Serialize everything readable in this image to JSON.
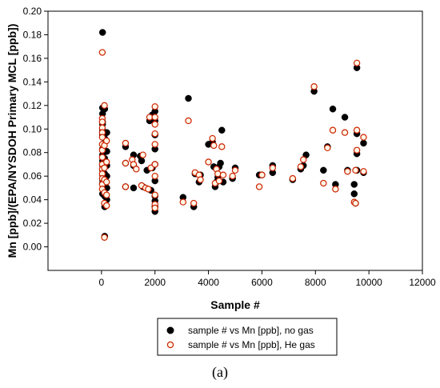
{
  "chart_data": {
    "type": "scatter",
    "xlabel": "Sample #",
    "ylabel": "Mn [ppb]/(EPA/NYSDOH Primary MCL [ppb])",
    "xlim": [
      -2000,
      12000
    ],
    "ylim": [
      -0.02,
      0.2
    ],
    "xticks": [
      "0",
      "2000",
      "4000",
      "6000",
      "8000",
      "10000",
      "12000"
    ],
    "yticks": [
      "0.00",
      "0.02",
      "0.04",
      "0.06",
      "0.08",
      "0.10",
      "0.12",
      "0.14",
      "0.16",
      "0.18",
      "0.20"
    ],
    "legend_position": "bottom-center",
    "caption": "(a)",
    "series": [
      {
        "name": "sample # vs Mn [ppb], no gas",
        "marker": "filled-circle",
        "color": "#000000",
        "points": [
          [
            40,
            0.182
          ],
          [
            40,
            0.118
          ],
          [
            40,
            0.113
          ],
          [
            40,
            0.106
          ],
          [
            40,
            0.104
          ],
          [
            40,
            0.099
          ],
          [
            40,
            0.095
          ],
          [
            40,
            0.087
          ],
          [
            40,
            0.083
          ],
          [
            40,
            0.078
          ],
          [
            40,
            0.073
          ],
          [
            40,
            0.069
          ],
          [
            40,
            0.065
          ],
          [
            40,
            0.061
          ],
          [
            40,
            0.057
          ],
          [
            40,
            0.054
          ],
          [
            40,
            0.049
          ],
          [
            40,
            0.045
          ],
          [
            120,
            0.117
          ],
          [
            120,
            0.092
          ],
          [
            120,
            0.075
          ],
          [
            120,
            0.062
          ],
          [
            120,
            0.055
          ],
          [
            120,
            0.043
          ],
          [
            120,
            0.034
          ],
          [
            120,
            0.009
          ],
          [
            200,
            0.097
          ],
          [
            200,
            0.081
          ],
          [
            200,
            0.069
          ],
          [
            200,
            0.06
          ],
          [
            200,
            0.05
          ],
          [
            200,
            0.04
          ],
          [
            900,
            0.085
          ],
          [
            900,
            0.071
          ],
          [
            900,
            0.051
          ],
          [
            1200,
            0.078
          ],
          [
            1200,
            0.069
          ],
          [
            1200,
            0.05
          ],
          [
            1450,
            0.077
          ],
          [
            1500,
            0.073
          ],
          [
            1550,
            0.051
          ],
          [
            1700,
            0.065
          ],
          [
            1800,
            0.107
          ],
          [
            1850,
            0.048
          ],
          [
            1900,
            0.112
          ],
          [
            1900,
            0.067
          ],
          [
            2000,
            0.115
          ],
          [
            2000,
            0.107
          ],
          [
            2000,
            0.095
          ],
          [
            2000,
            0.083
          ],
          [
            2000,
            0.07
          ],
          [
            2000,
            0.056
          ],
          [
            2000,
            0.043
          ],
          [
            2000,
            0.039
          ],
          [
            2000,
            0.034
          ],
          [
            2000,
            0.03
          ],
          [
            3050,
            0.042
          ],
          [
            3250,
            0.126
          ],
          [
            3450,
            0.034
          ],
          [
            3500,
            0.062
          ],
          [
            3650,
            0.055
          ],
          [
            3700,
            0.061
          ],
          [
            4000,
            0.087
          ],
          [
            4150,
            0.089
          ],
          [
            4200,
            0.068
          ],
          [
            4250,
            0.051
          ],
          [
            4300,
            0.055
          ],
          [
            4350,
            0.059
          ],
          [
            4400,
            0.068
          ],
          [
            4450,
            0.071
          ],
          [
            4500,
            0.099
          ],
          [
            4550,
            0.055
          ],
          [
            4900,
            0.058
          ],
          [
            5000,
            0.067
          ],
          [
            5900,
            0.061
          ],
          [
            6000,
            0.061
          ],
          [
            6400,
            0.063
          ],
          [
            6400,
            0.069
          ],
          [
            7150,
            0.057
          ],
          [
            7450,
            0.066
          ],
          [
            7550,
            0.069
          ],
          [
            7650,
            0.078
          ],
          [
            7950,
            0.132
          ],
          [
            8300,
            0.065
          ],
          [
            8450,
            0.085
          ],
          [
            8650,
            0.117
          ],
          [
            8750,
            0.053
          ],
          [
            9100,
            0.11
          ],
          [
            9200,
            0.065
          ],
          [
            9450,
            0.053
          ],
          [
            9450,
            0.045
          ],
          [
            9500,
            0.037
          ],
          [
            9550,
            0.152
          ],
          [
            9550,
            0.096
          ],
          [
            9550,
            0.079
          ],
          [
            9550,
            0.065
          ],
          [
            9800,
            0.088
          ],
          [
            9800,
            0.063
          ]
        ]
      },
      {
        "name": "sample # vs Mn [ppb], He gas",
        "marker": "open-circle",
        "color": "#cc2200",
        "points": [
          [
            30,
            0.165
          ],
          [
            30,
            0.109
          ],
          [
            30,
            0.106
          ],
          [
            30,
            0.101
          ],
          [
            30,
            0.097
          ],
          [
            30,
            0.093
          ],
          [
            30,
            0.087
          ],
          [
            30,
            0.082
          ],
          [
            30,
            0.076
          ],
          [
            30,
            0.07
          ],
          [
            30,
            0.066
          ],
          [
            30,
            0.062
          ],
          [
            30,
            0.058
          ],
          [
            30,
            0.053
          ],
          [
            30,
            0.049
          ],
          [
            110,
            0.12
          ],
          [
            110,
            0.086
          ],
          [
            110,
            0.067
          ],
          [
            110,
            0.057
          ],
          [
            110,
            0.046
          ],
          [
            110,
            0.037
          ],
          [
            110,
            0.008
          ],
          [
            190,
            0.09
          ],
          [
            190,
            0.072
          ],
          [
            190,
            0.055
          ],
          [
            190,
            0.044
          ],
          [
            190,
            0.035
          ],
          [
            900,
            0.088
          ],
          [
            900,
            0.071
          ],
          [
            900,
            0.051
          ],
          [
            1150,
            0.074
          ],
          [
            1200,
            0.07
          ],
          [
            1300,
            0.066
          ],
          [
            1500,
            0.052
          ],
          [
            1550,
            0.078
          ],
          [
            1650,
            0.05
          ],
          [
            1750,
            0.049
          ],
          [
            1800,
            0.11
          ],
          [
            1850,
            0.067
          ],
          [
            2000,
            0.119
          ],
          [
            2000,
            0.11
          ],
          [
            2000,
            0.104
          ],
          [
            2000,
            0.096
          ],
          [
            2000,
            0.087
          ],
          [
            2000,
            0.07
          ],
          [
            2000,
            0.06
          ],
          [
            2000,
            0.044
          ],
          [
            2000,
            0.036
          ],
          [
            2000,
            0.033
          ],
          [
            3050,
            0.038
          ],
          [
            3250,
            0.107
          ],
          [
            3450,
            0.037
          ],
          [
            3500,
            0.063
          ],
          [
            3650,
            0.061
          ],
          [
            3700,
            0.057
          ],
          [
            4000,
            0.072
          ],
          [
            4150,
            0.092
          ],
          [
            4200,
            0.086
          ],
          [
            4250,
            0.054
          ],
          [
            4300,
            0.066
          ],
          [
            4350,
            0.062
          ],
          [
            4400,
            0.056
          ],
          [
            4500,
            0.085
          ],
          [
            4550,
            0.061
          ],
          [
            4900,
            0.06
          ],
          [
            5000,
            0.065
          ],
          [
            5900,
            0.051
          ],
          [
            6000,
            0.061
          ],
          [
            6400,
            0.067
          ],
          [
            7150,
            0.058
          ],
          [
            7450,
            0.068
          ],
          [
            7550,
            0.074
          ],
          [
            7950,
            0.136
          ],
          [
            8300,
            0.054
          ],
          [
            8450,
            0.084
          ],
          [
            8650,
            0.099
          ],
          [
            8750,
            0.049
          ],
          [
            9100,
            0.097
          ],
          [
            9200,
            0.064
          ],
          [
            9450,
            0.038
          ],
          [
            9500,
            0.037
          ],
          [
            9500,
            0.065
          ],
          [
            9550,
            0.156
          ],
          [
            9550,
            0.082
          ],
          [
            9550,
            0.099
          ],
          [
            9800,
            0.064
          ],
          [
            9800,
            0.093
          ]
        ]
      }
    ]
  }
}
